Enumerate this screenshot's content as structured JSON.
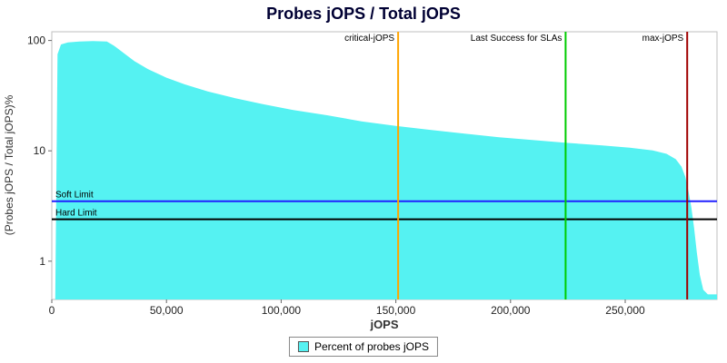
{
  "chart_data": {
    "type": "area",
    "title": "Probes jOPS / Total jOPS",
    "xlabel": "jOPS",
    "ylabel": "(Probes jOPS / Total jOPS)%",
    "x_scale": "linear",
    "y_scale": "log",
    "grid": false,
    "xlim": [
      0,
      290000
    ],
    "ylim": [
      0.45,
      120
    ],
    "x_ticks": [
      {
        "v": 0,
        "label": "0"
      },
      {
        "v": 50000,
        "label": "50,000"
      },
      {
        "v": 100000,
        "label": "100,000"
      },
      {
        "v": 150000,
        "label": "150,000"
      },
      {
        "v": 200000,
        "label": "200,000"
      },
      {
        "v": 250000,
        "label": "250,000"
      }
    ],
    "y_ticks": [
      {
        "v": 1,
        "label": "1"
      },
      {
        "v": 10,
        "label": "10"
      },
      {
        "v": 100,
        "label": "100"
      }
    ],
    "series": [
      {
        "name": "Percent of probes jOPS",
        "color": "#55F2F2",
        "points": [
          [
            1500,
            0.45
          ],
          [
            2500,
            75
          ],
          [
            4000,
            92
          ],
          [
            7000,
            96
          ],
          [
            12000,
            98
          ],
          [
            18000,
            99
          ],
          [
            24000,
            98
          ],
          [
            27000,
            90
          ],
          [
            31000,
            78
          ],
          [
            36000,
            65
          ],
          [
            42000,
            55
          ],
          [
            50000,
            46
          ],
          [
            58000,
            40
          ],
          [
            68000,
            34.5
          ],
          [
            80000,
            30
          ],
          [
            92000,
            26.5
          ],
          [
            105000,
            23.5
          ],
          [
            120000,
            21
          ],
          [
            135000,
            18.5
          ],
          [
            150000,
            16.8
          ],
          [
            165000,
            15.5
          ],
          [
            180000,
            14.3
          ],
          [
            195000,
            13.3
          ],
          [
            210000,
            12.5
          ],
          [
            225000,
            11.8
          ],
          [
            240000,
            11.2
          ],
          [
            252000,
            10.7
          ],
          [
            262000,
            10.1
          ],
          [
            268000,
            9.4
          ],
          [
            272000,
            8.4
          ],
          [
            274500,
            7.2
          ],
          [
            276200,
            5.8
          ],
          [
            277500,
            4.4
          ],
          [
            278800,
            3.1
          ],
          [
            280000,
            2.0
          ],
          [
            281200,
            1.2
          ],
          [
            282500,
            0.75
          ],
          [
            284000,
            0.55
          ],
          [
            286000,
            0.5
          ],
          [
            290000,
            0.5
          ]
        ]
      }
    ],
    "v_markers": [
      {
        "label": "critical-jOPS",
        "x": 151000,
        "color": "#FFA500"
      },
      {
        "label": "Last Success for SLAs",
        "x": 224000,
        "color": "#00CC00"
      },
      {
        "label": "max-jOPS",
        "x": 277000,
        "color": "#A00000"
      }
    ],
    "h_markers": [
      {
        "label": "Soft Limit",
        "y": 3.5,
        "color": "#2020FF"
      },
      {
        "label": "Hard Limit",
        "y": 2.4,
        "color": "#000000"
      }
    ],
    "legend": {
      "position": "bottom",
      "items": [
        {
          "label": "Percent of probes jOPS",
          "color": "#55F2F2"
        }
      ]
    }
  }
}
